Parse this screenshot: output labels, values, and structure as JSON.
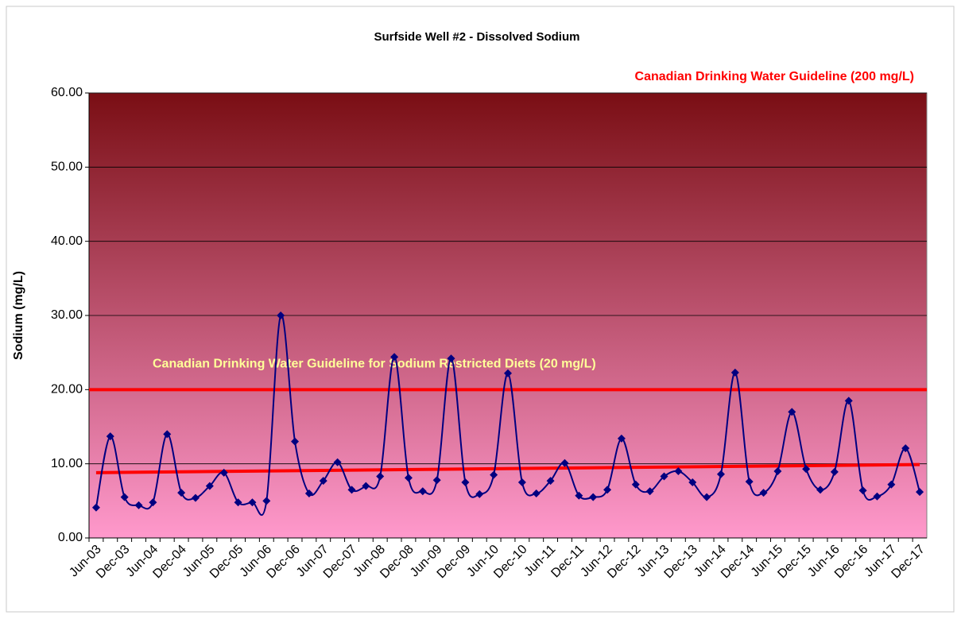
{
  "chart_data": {
    "type": "line",
    "title": "Surfside Well #2 - Dissolved Sodium",
    "y_label": "Sodium (mg/L)",
    "annotation": "Canadian Drinking Water Guideline (200 mg/L)",
    "annotation_color": "#ff0000",
    "categories": [
      "Jun-03",
      null,
      "Dec-03",
      null,
      "Jun-04",
      null,
      "Dec-04",
      null,
      "Jun-05",
      null,
      "Dec-05",
      null,
      "Jun-06",
      null,
      "Dec-06",
      null,
      "Jun-07",
      null,
      "Dec-07",
      null,
      "Jun-08",
      null,
      "Dec-08",
      null,
      "Jun-09",
      null,
      "Dec-09",
      null,
      "Jun-10",
      null,
      "Dec-10",
      null,
      "Jun-11",
      null,
      "Dec-11",
      null,
      "Jun-12",
      null,
      "Dec-12",
      null,
      "Jun-13",
      null,
      "Dec-13",
      null,
      "Jun-14",
      null,
      "Dec-14",
      null,
      "Jun-15",
      null,
      "Dec-15",
      null,
      "Jun-16",
      null,
      "Dec-16",
      null,
      "Jun-17",
      null,
      "Dec-17"
    ],
    "series": [
      {
        "color": "#000080",
        "values": [
          4.1,
          13.7,
          5.5,
          4.4,
          4.8,
          14.0,
          6.1,
          5.4,
          7.0,
          8.8,
          4.8,
          4.8,
          5.0,
          30.0,
          13.0,
          6.0,
          7.7,
          10.2,
          6.5,
          7.0,
          8.3,
          24.4,
          8.1,
          6.3,
          7.8,
          24.2,
          7.5,
          5.9,
          8.5,
          22.2,
          7.5,
          6.0,
          7.7,
          10.1,
          5.7,
          5.5,
          6.5,
          13.4,
          7.2,
          6.3,
          8.3,
          9.0,
          7.5,
          5.5,
          8.6,
          22.3,
          7.6,
          6.1,
          9.0,
          17.0,
          9.3,
          6.5,
          8.9,
          18.5,
          6.4,
          5.6,
          7.2,
          12.1,
          6.2
        ]
      }
    ],
    "trend": {
      "start": 8.8,
      "end": 9.9,
      "color": "#ff0000"
    },
    "reference_lines": [
      {
        "value": 20,
        "label": "Canadian Drinking Water Guideline for Sodium Restricted Diets (20 mg/L)",
        "color": "#ff0000",
        "label_color": "#ffff99"
      }
    ],
    "ylim": [
      0,
      60
    ],
    "yticks": [
      {
        "value": 0,
        "label": "0.00"
      },
      {
        "value": 10,
        "label": "10.00"
      },
      {
        "value": 20,
        "label": "20.00"
      },
      {
        "value": 30,
        "label": "30.00"
      },
      {
        "value": 40,
        "label": "40.00"
      },
      {
        "value": 50,
        "label": "50.00"
      },
      {
        "value": 60,
        "label": "60.00"
      }
    ],
    "grid": true,
    "background_gradient": [
      "#7a0e14",
      "#ff99cc"
    ]
  }
}
